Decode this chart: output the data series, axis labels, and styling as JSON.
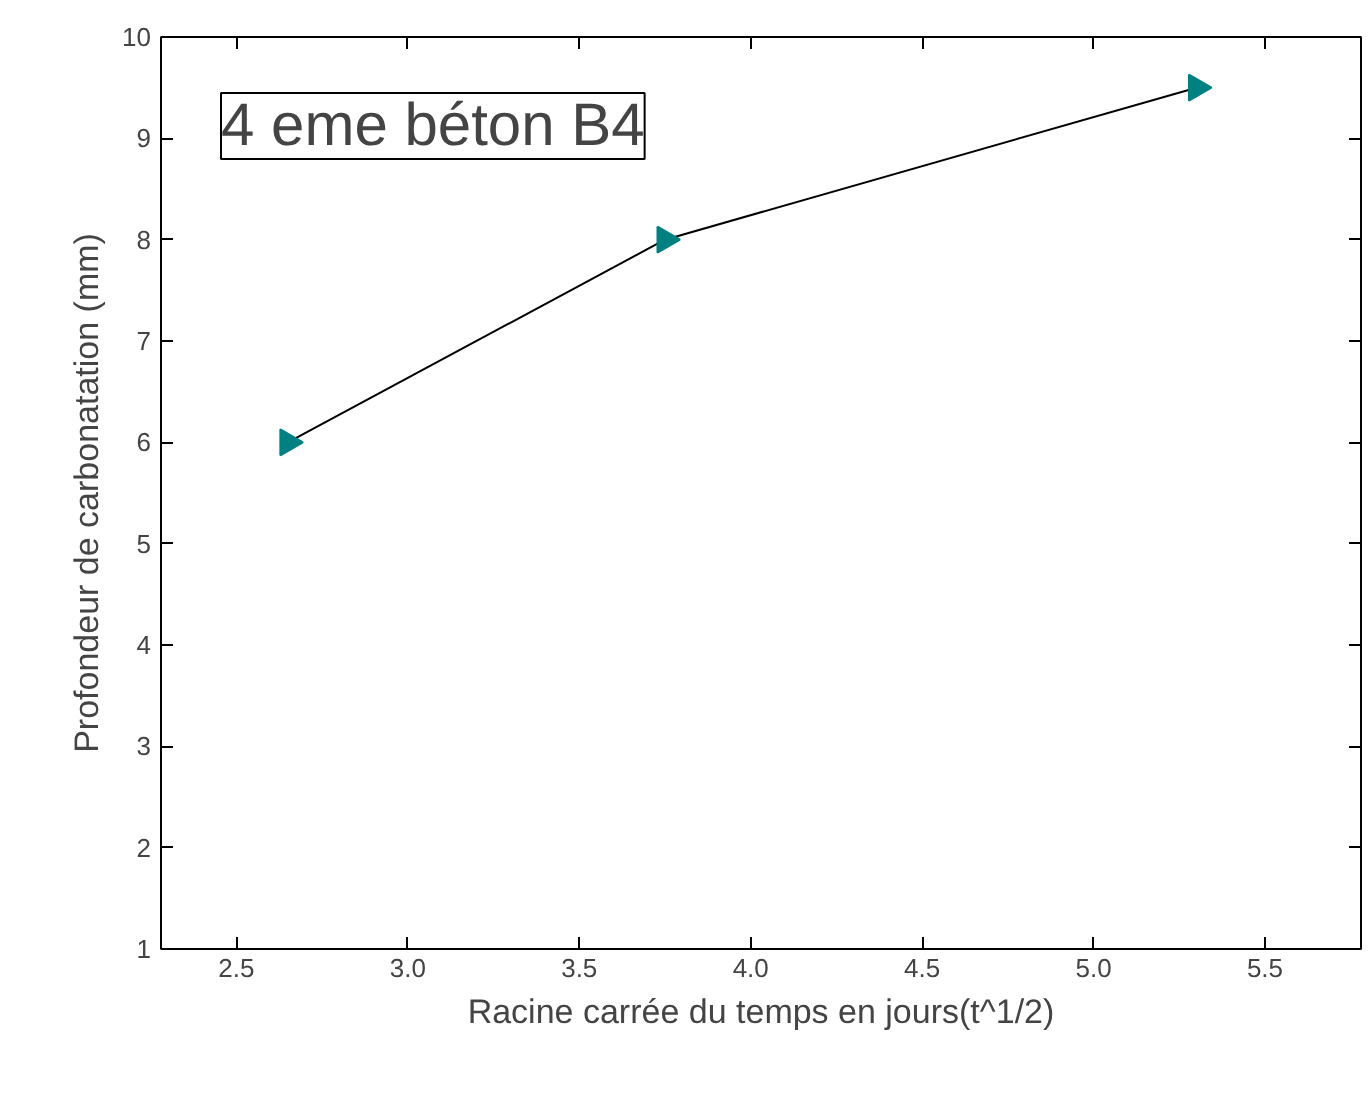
{
  "chart_data": {
    "type": "line",
    "title": "4 eme béton B4",
    "xlabel": "Racine carrée du temps en jours(t^1/2)",
    "ylabel": "Profondeur de carbonatation (mm)",
    "x": [
      2.65,
      3.75,
      5.3
    ],
    "series": [
      {
        "color": "#008080",
        "values": [
          6,
          8,
          9.5
        ]
      }
    ],
    "marker": "triangle",
    "line_style": "solid",
    "xlim": [
      2.28,
      5.78
    ],
    "xticks": [
      2.5,
      {
        "value": 3,
        "label": "3.0"
      },
      3.5,
      {
        "value": 4,
        "label": "4.0"
      },
      4.5,
      {
        "value": 5,
        "label": "5.0"
      },
      5.5
    ],
    "ylim": [
      1,
      10
    ],
    "yticks": [
      1,
      2,
      3,
      4,
      5,
      6,
      7,
      8,
      9,
      10
    ]
  }
}
